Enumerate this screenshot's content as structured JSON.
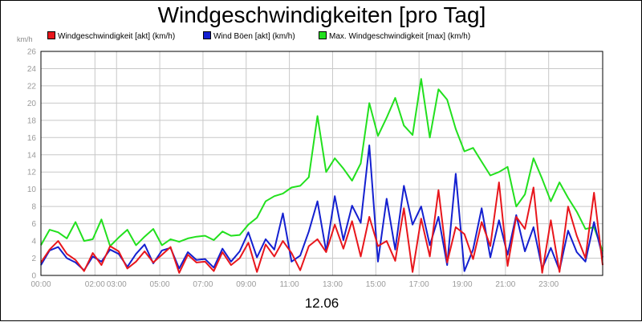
{
  "chart_data": {
    "type": "line",
    "title": "Windgeschwindigkeiten [pro Tag]",
    "ylabel": "km/h",
    "xlabel": "12.06",
    "ylim": [
      0,
      26
    ],
    "y_ticks": [
      0,
      2,
      4,
      6,
      8,
      10,
      12,
      14,
      16,
      18,
      20,
      22,
      24,
      26
    ],
    "x_ticks": [
      {
        "hour": 0,
        "label": "00:00"
      },
      {
        "hour": 2.5,
        "label": "02:00"
      },
      {
        "hour": 3.5,
        "label": "03:00"
      },
      {
        "hour": 5.5,
        "label": "05:00"
      },
      {
        "hour": 7.5,
        "label": "07:00"
      },
      {
        "hour": 9.5,
        "label": "09:00"
      },
      {
        "hour": 11.5,
        "label": "11:00"
      },
      {
        "hour": 13.5,
        "label": "13:00"
      },
      {
        "hour": 15.5,
        "label": "15:00"
      },
      {
        "hour": 17.5,
        "label": "17:00"
      },
      {
        "hour": 19.5,
        "label": "19:00"
      },
      {
        "hour": 21.5,
        "label": "21:00"
      },
      {
        "hour": 23.5,
        "label": "23:00"
      }
    ],
    "x_range_hours": [
      0,
      26
    ],
    "grid": true,
    "legend_position": "top",
    "series": [
      {
        "name": "Windgeschwindigkeit [akt] (km/h)",
        "color": "#e8161c",
        "x": [
          0.0,
          0.4,
          0.8,
          1.2,
          1.6,
          2.0,
          2.4,
          2.8,
          3.2,
          3.6,
          4.0,
          4.4,
          4.8,
          5.2,
          5.6,
          6.0,
          6.4,
          6.8,
          7.2,
          7.6,
          8.0,
          8.4,
          8.8,
          9.2,
          9.6,
          10.0,
          10.4,
          10.8,
          11.2,
          11.6,
          12.0,
          12.4,
          12.8,
          13.2,
          13.6,
          14.0,
          14.4,
          14.8,
          15.2,
          15.6,
          16.0,
          16.4,
          16.8,
          17.2,
          17.6,
          18.0,
          18.4,
          18.8,
          19.2,
          19.6,
          20.0,
          20.4,
          20.8,
          21.2,
          21.6,
          22.0,
          22.4,
          22.8,
          23.2,
          23.6,
          24.0,
          24.4,
          24.8,
          25.2,
          25.6,
          26.0
        ],
        "values": [
          1.5,
          3.0,
          4.0,
          2.5,
          1.8,
          0.5,
          2.6,
          1.2,
          3.4,
          2.8,
          0.8,
          1.6,
          2.8,
          1.5,
          2.4,
          3.3,
          0.3,
          2.4,
          1.5,
          1.6,
          0.5,
          2.7,
          1.2,
          2.0,
          3.8,
          0.4,
          3.6,
          2.2,
          4.0,
          2.6,
          0.6,
          3.4,
          4.2,
          2.7,
          5.9,
          3.1,
          6.3,
          2.2,
          6.8,
          3.4,
          4.0,
          1.7,
          7.8,
          0.4,
          6.6,
          2.2,
          9.9,
          1.5,
          5.6,
          4.8,
          1.9,
          6.2,
          3.4,
          10.8,
          1.1,
          6.8,
          5.4,
          10.2,
          0.3,
          6.4,
          0.4,
          8.0,
          4.6,
          2.0,
          9.6,
          1.2
        ]
      },
      {
        "name": "Wind Böen [akt] (km/h)",
        "color": "#1420d0",
        "x": [
          0.0,
          0.4,
          0.8,
          1.2,
          1.6,
          2.0,
          2.4,
          2.8,
          3.2,
          3.6,
          4.0,
          4.4,
          4.8,
          5.2,
          5.6,
          6.0,
          6.4,
          6.8,
          7.2,
          7.6,
          8.0,
          8.4,
          8.8,
          9.2,
          9.6,
          10.0,
          10.4,
          10.8,
          11.2,
          11.6,
          12.0,
          12.4,
          12.8,
          13.2,
          13.6,
          14.0,
          14.4,
          14.8,
          15.2,
          15.6,
          16.0,
          16.4,
          16.8,
          17.2,
          17.6,
          18.0,
          18.4,
          18.8,
          19.2,
          19.6,
          20.0,
          20.4,
          20.8,
          21.2,
          21.6,
          22.0,
          22.4,
          22.8,
          23.2,
          23.6,
          24.0,
          24.4,
          24.8,
          25.2,
          25.6,
          26.0
        ],
        "values": [
          1.2,
          2.9,
          3.3,
          2.0,
          1.5,
          0.6,
          2.2,
          1.6,
          3.0,
          2.5,
          1.0,
          2.5,
          3.6,
          1.4,
          2.9,
          3.2,
          0.8,
          2.7,
          1.8,
          1.9,
          0.9,
          3.1,
          1.6,
          2.8,
          5.0,
          2.1,
          4.2,
          3.0,
          7.2,
          1.6,
          2.3,
          5.1,
          8.6,
          2.8,
          9.2,
          4.1,
          8.1,
          6.1,
          15.1,
          1.6,
          8.9,
          3.0,
          10.4,
          5.9,
          8.0,
          3.5,
          6.8,
          1.2,
          11.8,
          0.5,
          3.0,
          7.8,
          2.1,
          6.4,
          2.4,
          7.0,
          2.8,
          5.6,
          0.8,
          3.2,
          0.6,
          5.2,
          2.7,
          1.6,
          6.2,
          2.1
        ]
      },
      {
        "name": "Max. Windgeschwindigkeit [max] (km/h)",
        "color": "#22e01e",
        "x": [
          0.0,
          0.4,
          0.8,
          1.2,
          1.6,
          2.0,
          2.4,
          2.8,
          3.2,
          3.6,
          4.0,
          4.4,
          4.8,
          5.2,
          5.6,
          6.0,
          6.4,
          6.8,
          7.2,
          7.6,
          8.0,
          8.4,
          8.8,
          9.2,
          9.6,
          10.0,
          10.4,
          10.8,
          11.2,
          11.6,
          12.0,
          12.4,
          12.8,
          13.2,
          13.6,
          14.0,
          14.4,
          14.8,
          15.2,
          15.6,
          16.0,
          16.4,
          16.8,
          17.2,
          17.6,
          18.0,
          18.4,
          18.8,
          19.2,
          19.6,
          20.0,
          20.4,
          20.8,
          21.2,
          21.6,
          22.0,
          22.4,
          22.8,
          23.2,
          23.6,
          24.0,
          24.4,
          24.8,
          25.2,
          25.6,
          26.0
        ],
        "values": [
          3.5,
          5.3,
          5.0,
          4.3,
          6.2,
          4.0,
          4.2,
          6.5,
          3.4,
          4.4,
          5.3,
          3.5,
          4.5,
          5.4,
          3.5,
          4.2,
          3.9,
          4.3,
          4.5,
          4.6,
          4.1,
          5.1,
          4.6,
          4.7,
          5.9,
          6.7,
          8.6,
          9.2,
          9.5,
          10.2,
          10.4,
          11.4,
          18.5,
          12.0,
          13.6,
          12.4,
          11.0,
          13.0,
          20.0,
          16.2,
          18.3,
          20.6,
          17.4,
          16.3,
          22.8,
          16.0,
          21.6,
          20.4,
          17.0,
          14.4,
          14.8,
          13.2,
          11.6,
          12.0,
          12.6,
          8.0,
          9.4,
          13.6,
          11.2,
          8.6,
          10.8,
          9.0,
          7.4,
          5.4,
          5.6,
          2.8
        ]
      }
    ]
  }
}
